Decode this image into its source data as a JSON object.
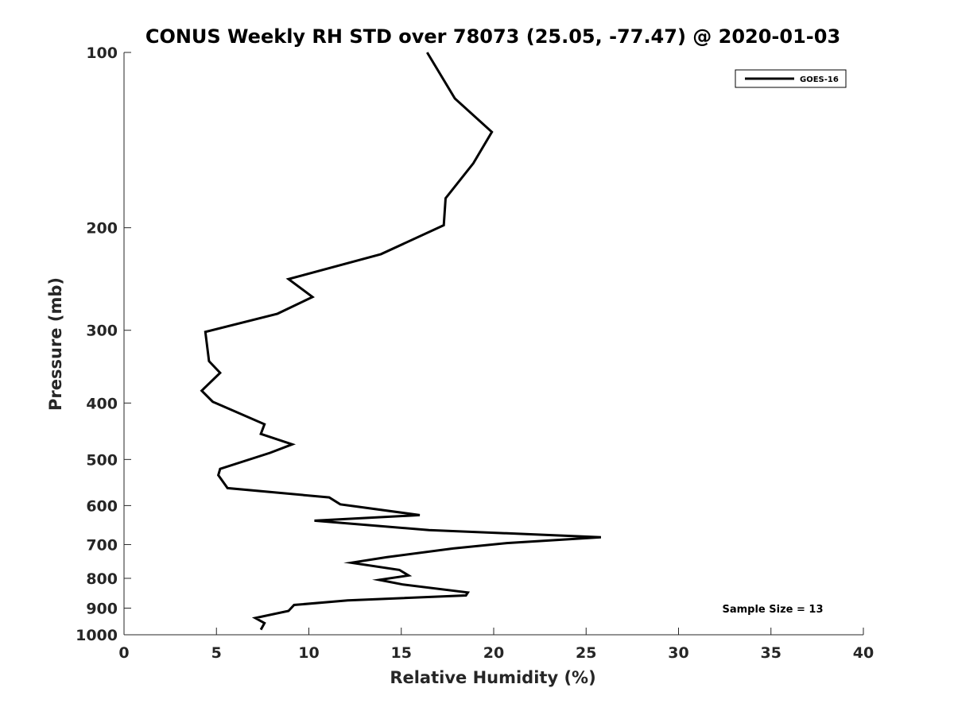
{
  "chart_data": {
    "type": "line",
    "title": "CONUS Weekly RH STD over 78073 (25.05, -77.47) @ 2020-01-03",
    "xlabel": "Relative Humidity (%)",
    "ylabel": "Pressure (mb)",
    "xlim": [
      0,
      40
    ],
    "ylim": [
      100,
      1000
    ],
    "y_scale": "log",
    "y_reversed": true,
    "x_ticks": [
      "0",
      "5",
      "10",
      "15",
      "20",
      "25",
      "30",
      "35",
      "40"
    ],
    "y_ticks": [
      "100",
      "200",
      "300",
      "400",
      "500",
      "600",
      "700",
      "800",
      "900",
      "1000"
    ],
    "grid": false,
    "legend_position": "top-right",
    "annotation": "Sample Size = 13",
    "series": [
      {
        "name": "GOES-16",
        "color": "#000000",
        "x": [
          16.4,
          17.9,
          19.9,
          18.9,
          17.4,
          17.3,
          13.9,
          8.9,
          10.2,
          8.3,
          4.4,
          4.6,
          5.2,
          4.2,
          4.8,
          7.6,
          7.4,
          9.1,
          7.9,
          5.2,
          5.1,
          5.6,
          11.1,
          11.7,
          16.0,
          10.3,
          16.5,
          25.8,
          20.7,
          17.8,
          14.2,
          12.3,
          14.9,
          15.4,
          13.8,
          15.1,
          18.6,
          18.5,
          12.1,
          9.2,
          8.9,
          7.1,
          7.6,
          7.4
        ],
        "y": [
          100,
          120,
          137,
          155,
          178,
          198,
          222,
          245,
          263,
          281,
          302,
          339,
          355,
          381,
          398,
          435,
          452,
          471,
          487,
          519,
          532,
          560,
          581,
          597,
          623,
          637,
          661,
          680,
          696,
          711,
          736,
          752,
          774,
          791,
          805,
          820,
          846,
          856,
          873,
          889,
          910,
          936,
          955,
          980
        ]
      }
    ]
  }
}
